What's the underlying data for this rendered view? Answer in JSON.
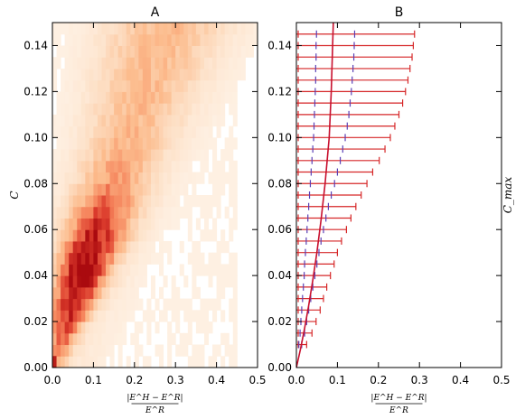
{
  "chart_data": [
    {
      "panel": "A",
      "type": "heatmap",
      "title": "A",
      "ylabel": "C",
      "xlabel_numerator": "|E^H − E^R|",
      "xlabel_denominator": "E^R",
      "xlim": [
        0,
        0.5
      ],
      "ylim": [
        0,
        0.15
      ],
      "xticks": [
        "0.0",
        "0.1",
        "0.2",
        "0.3",
        "0.4",
        "0.5"
      ],
      "yticks": [
        "0.00",
        "0.02",
        "0.04",
        "0.06",
        "0.08",
        "0.10",
        "0.12",
        "0.14"
      ],
      "colormap": "Reds",
      "bin_size": [
        0.01,
        0.005
      ],
      "density_model": "ridge from (0,0) to (0.08,0.04) then spreading out toward (0.25,0.10); hot spot near (0.07,0.04)"
    },
    {
      "panel": "B",
      "type": "scatter",
      "title": "B",
      "ylabel": "C_max",
      "xlabel_numerator": "|E^H − E^R|",
      "xlabel_denominator": "E^R",
      "xlim": [
        0,
        0.5
      ],
      "ylim": [
        0,
        0.15
      ],
      "xticks": [
        "0.0",
        "0.1",
        "0.2",
        "0.3",
        "0.4",
        "0.5"
      ],
      "yticks": [
        "0.00",
        "0.02",
        "0.04",
        "0.06",
        "0.08",
        "0.10",
        "0.12",
        "0.14"
      ],
      "error_color": "#d62728",
      "quartile_color": "#5a3fb5",
      "curve_color": "#c8102e",
      "error_bars": [
        {
          "y": 0.01,
          "low": 0.0,
          "q1": 0.006,
          "q3": 0.013,
          "high": 0.025
        },
        {
          "y": 0.015,
          "low": 0.0,
          "q1": 0.009,
          "q3": 0.02,
          "high": 0.038
        },
        {
          "y": 0.02,
          "low": 0.0,
          "q1": 0.011,
          "q3": 0.025,
          "high": 0.048
        },
        {
          "y": 0.025,
          "low": 0.0,
          "q1": 0.013,
          "q3": 0.03,
          "high": 0.058
        },
        {
          "y": 0.03,
          "low": 0.0,
          "q1": 0.015,
          "q3": 0.035,
          "high": 0.066
        },
        {
          "y": 0.035,
          "low": 0.0,
          "q1": 0.017,
          "q3": 0.04,
          "high": 0.074
        },
        {
          "y": 0.04,
          "low": 0.0,
          "q1": 0.019,
          "q3": 0.045,
          "high": 0.083
        },
        {
          "y": 0.045,
          "low": 0.0,
          "q1": 0.02,
          "q3": 0.05,
          "high": 0.092
        },
        {
          "y": 0.05,
          "low": 0.0,
          "q1": 0.022,
          "q3": 0.055,
          "high": 0.1
        },
        {
          "y": 0.055,
          "low": 0.0,
          "q1": 0.024,
          "q3": 0.06,
          "high": 0.11
        },
        {
          "y": 0.06,
          "low": 0.0,
          "q1": 0.026,
          "q3": 0.066,
          "high": 0.122
        },
        {
          "y": 0.065,
          "low": 0.0,
          "q1": 0.028,
          "q3": 0.072,
          "high": 0.133
        },
        {
          "y": 0.07,
          "low": 0.0,
          "q1": 0.03,
          "q3": 0.078,
          "high": 0.145
        },
        {
          "y": 0.075,
          "low": 0.0,
          "q1": 0.032,
          "q3": 0.085,
          "high": 0.158
        },
        {
          "y": 0.08,
          "low": 0.0,
          "q1": 0.034,
          "q3": 0.093,
          "high": 0.172
        },
        {
          "y": 0.085,
          "low": 0.0,
          "q1": 0.036,
          "q3": 0.1,
          "high": 0.186
        },
        {
          "y": 0.09,
          "low": 0.0,
          "q1": 0.038,
          "q3": 0.107,
          "high": 0.202
        },
        {
          "y": 0.095,
          "low": 0.0,
          "q1": 0.04,
          "q3": 0.113,
          "high": 0.216
        },
        {
          "y": 0.1,
          "low": 0.0,
          "q1": 0.042,
          "q3": 0.119,
          "high": 0.229
        },
        {
          "y": 0.105,
          "low": 0.0,
          "q1": 0.043,
          "q3": 0.124,
          "high": 0.24
        },
        {
          "y": 0.11,
          "low": 0.0,
          "q1": 0.044,
          "q3": 0.128,
          "high": 0.25
        },
        {
          "y": 0.115,
          "low": 0.0,
          "q1": 0.045,
          "q3": 0.131,
          "high": 0.259
        },
        {
          "y": 0.12,
          "low": 0.0,
          "q1": 0.046,
          "q3": 0.134,
          "high": 0.266
        },
        {
          "y": 0.125,
          "low": 0.0,
          "q1": 0.047,
          "q3": 0.136,
          "high": 0.272
        },
        {
          "y": 0.13,
          "low": 0.0,
          "q1": 0.047,
          "q3": 0.138,
          "high": 0.277
        },
        {
          "y": 0.135,
          "low": 0.0,
          "q1": 0.048,
          "q3": 0.14,
          "high": 0.282
        },
        {
          "y": 0.14,
          "low": 0.0,
          "q1": 0.048,
          "q3": 0.141,
          "high": 0.285
        },
        {
          "y": 0.145,
          "low": 0.0,
          "q1": 0.049,
          "q3": 0.142,
          "high": 0.288
        }
      ],
      "curve": {
        "x": [
          0.0,
          0.01,
          0.02,
          0.03,
          0.04,
          0.05,
          0.06,
          0.07,
          0.08,
          0.085,
          0.09
        ],
        "y": [
          0.0,
          0.008,
          0.017,
          0.027,
          0.038,
          0.05,
          0.064,
          0.08,
          0.1,
          0.12,
          0.15
        ]
      }
    }
  ]
}
